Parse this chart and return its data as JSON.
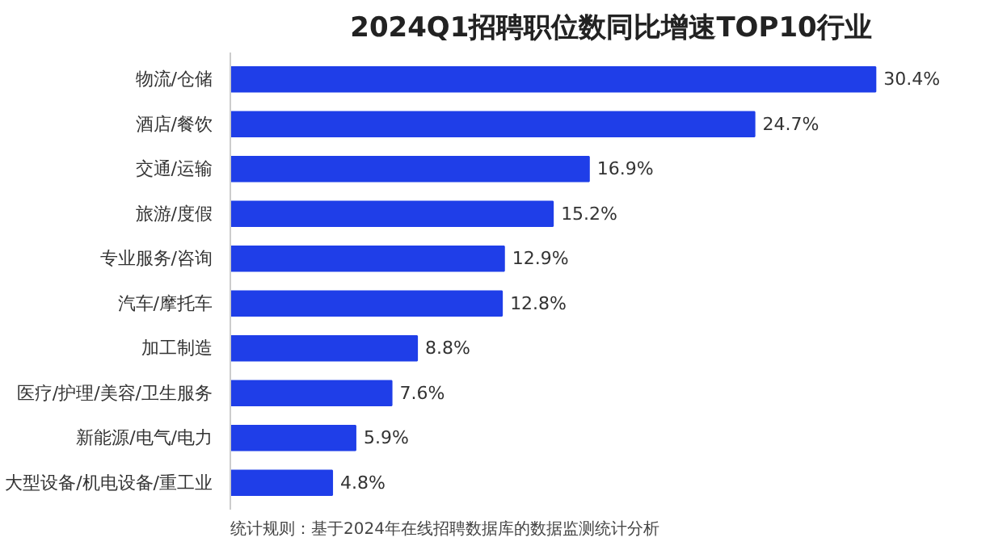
{
  "chart_data": {
    "type": "bar",
    "orientation": "horizontal",
    "title": "2024Q1招聘职位数同比增速TOP10行业",
    "categories": [
      "物流/仓储",
      "酒店/餐饮",
      "交通/运输",
      "旅游/度假",
      "专业服务/咨询",
      "汽车/摩托车",
      "加工制造",
      "医疗/护理/美容/卫生服务",
      "新能源/电气/电力",
      "大型设备/机电设备/重工业"
    ],
    "values": [
      30.4,
      24.7,
      16.9,
      15.2,
      12.9,
      12.8,
      8.8,
      7.6,
      5.9,
      4.8
    ],
    "value_labels": [
      "30.4%",
      "24.7%",
      "16.9%",
      "15.2%",
      "12.9%",
      "12.8%",
      "8.8%",
      "7.6%",
      "5.9%",
      "4.8%"
    ],
    "color": "#1f3ee8",
    "grid": false,
    "annotations": [
      "统计规则：基于2024年在线招聘数据库的数据监测统计分析"
    ]
  }
}
